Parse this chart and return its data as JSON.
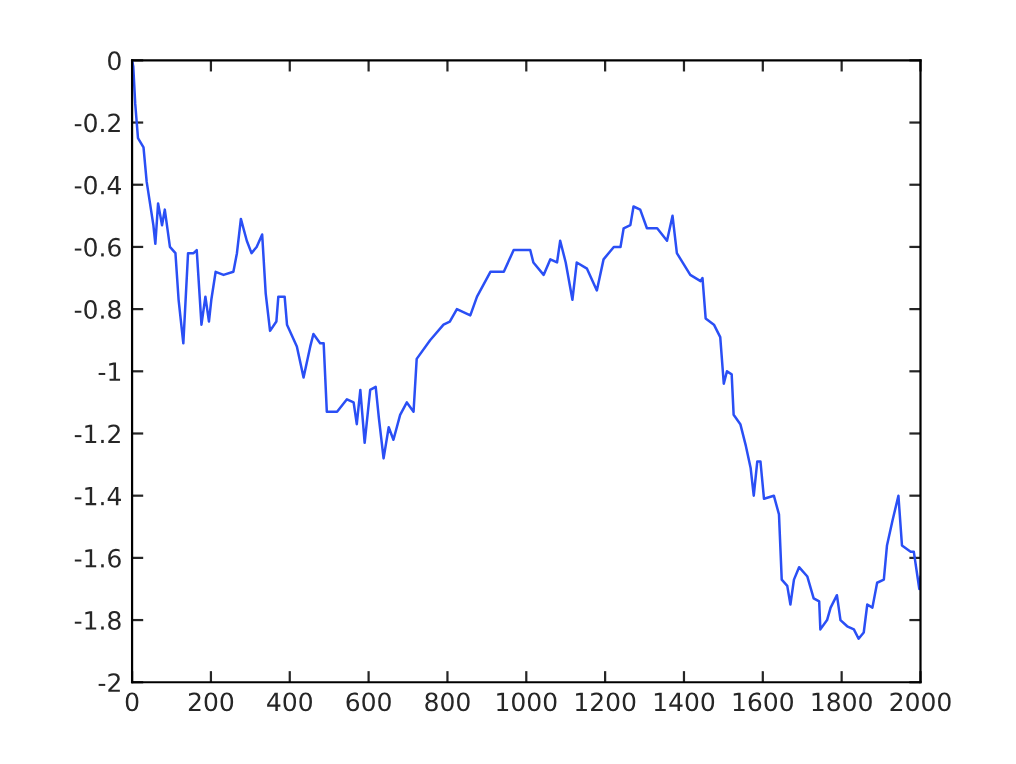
{
  "chart_data": {
    "type": "line",
    "x": [
      0,
      3,
      8,
      15,
      29,
      37,
      54,
      59,
      66,
      76,
      83,
      96,
      110,
      118,
      130,
      142,
      156,
      164,
      176,
      186,
      195,
      201,
      212,
      232,
      257,
      266,
      276,
      291,
      303,
      316,
      330,
      339,
      350,
      366,
      371,
      387,
      393,
      418,
      435,
      452,
      460,
      477,
      486,
      494,
      520,
      545,
      562,
      570,
      579,
      590,
      604,
      618,
      626,
      638,
      651,
      663,
      680,
      697,
      714,
      722,
      756,
      790,
      806,
      824,
      858,
      875,
      909,
      943,
      968,
      1010,
      1018,
      1044,
      1061,
      1078,
      1086,
      1100,
      1117,
      1128,
      1154,
      1179,
      1196,
      1222,
      1239,
      1247,
      1264,
      1272,
      1289,
      1306,
      1332,
      1357,
      1371,
      1382,
      1416,
      1442,
      1447,
      1455,
      1476,
      1492,
      1501,
      1509,
      1521,
      1526,
      1543,
      1557,
      1569,
      1577,
      1586,
      1594,
      1603,
      1628,
      1641,
      1648,
      1662,
      1670,
      1679,
      1692,
      1713,
      1729,
      1743,
      1746,
      1763,
      1772,
      1788,
      1797,
      1814,
      1831,
      1843,
      1856,
      1865,
      1878,
      1890,
      1907,
      1915,
      1929,
      1944,
      1953,
      1975,
      1983,
      1997,
      2000
    ],
    "series": [
      {
        "color": "#2a4ff5",
        "values": [
          0,
          -0.02,
          -0.14,
          -0.25,
          -0.28,
          -0.39,
          -0.53,
          -0.59,
          -0.46,
          -0.53,
          -0.48,
          -0.6,
          -0.62,
          -0.77,
          -0.91,
          -0.62,
          -0.62,
          -0.61,
          -0.85,
          -0.76,
          -0.84,
          -0.77,
          -0.68,
          -0.69,
          -0.68,
          -0.62,
          -0.51,
          -0.58,
          -0.62,
          -0.6,
          -0.56,
          -0.75,
          -0.87,
          -0.84,
          -0.76,
          -0.76,
          -0.85,
          -0.92,
          -1.02,
          -0.92,
          -0.88,
          -0.91,
          -0.91,
          -1.13,
          -1.13,
          -1.09,
          -1.1,
          -1.17,
          -1.06,
          -1.23,
          -1.06,
          -1.05,
          -1.15,
          -1.28,
          -1.18,
          -1.22,
          -1.14,
          -1.1,
          -1.13,
          -0.96,
          -0.9,
          -0.85,
          -0.84,
          -0.8,
          -0.82,
          -0.76,
          -0.68,
          -0.68,
          -0.61,
          -0.61,
          -0.65,
          -0.69,
          -0.64,
          -0.65,
          -0.58,
          -0.65,
          -0.77,
          -0.65,
          -0.67,
          -0.74,
          -0.64,
          -0.6,
          -0.6,
          -0.54,
          -0.53,
          -0.47,
          -0.48,
          -0.54,
          -0.54,
          -0.58,
          -0.5,
          -0.62,
          -0.69,
          -0.71,
          -0.7,
          -0.83,
          -0.85,
          -0.89,
          -1.04,
          -1.0,
          -1.01,
          -1.14,
          -1.17,
          -1.24,
          -1.31,
          -1.4,
          -1.29,
          -1.29,
          -1.41,
          -1.4,
          -1.46,
          -1.67,
          -1.69,
          -1.75,
          -1.67,
          -1.63,
          -1.66,
          -1.73,
          -1.74,
          -1.83,
          -1.8,
          -1.76,
          -1.72,
          -1.8,
          -1.82,
          -1.83,
          -1.86,
          -1.84,
          -1.75,
          -1.76,
          -1.68,
          -1.67,
          -1.56,
          -1.48,
          -1.4,
          -1.56,
          -1.58,
          -1.58,
          -1.7,
          -1.66
        ]
      }
    ],
    "xlim": [
      0,
      2000
    ],
    "xticks": [
      0,
      200,
      400,
      600,
      800,
      1000,
      1200,
      1400,
      1600,
      1800,
      2000
    ],
    "ylim": [
      -2,
      0
    ],
    "yticks": [
      -2,
      -1.8,
      -1.6,
      -1.4,
      -1.2,
      -1,
      -0.8,
      -0.6,
      -0.4,
      -0.2,
      0
    ],
    "grid": false,
    "legend": false
  }
}
